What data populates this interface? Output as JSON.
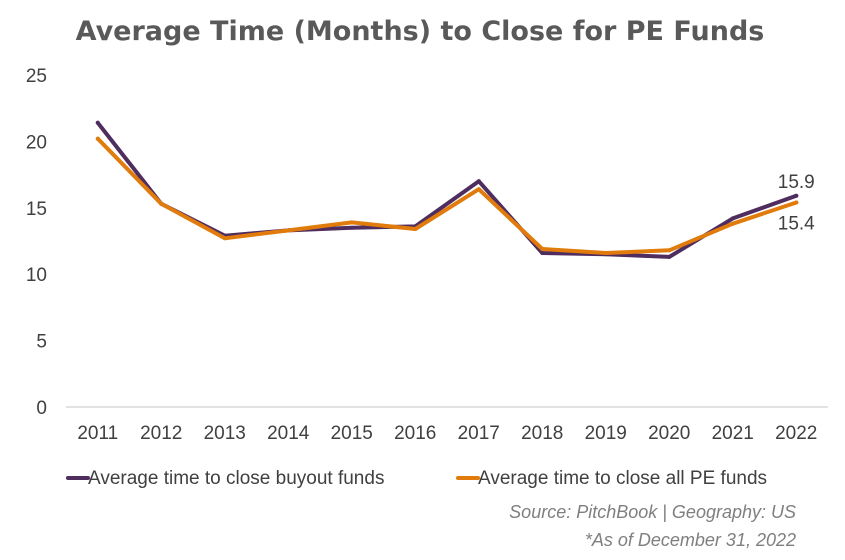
{
  "chart_data": {
    "type": "line",
    "title": "Average Time (Months) to Close for PE Funds",
    "xlabel": "",
    "ylabel": "",
    "categories": [
      "2011",
      "2012",
      "2013",
      "2014",
      "2015",
      "2016",
      "2017",
      "2018",
      "2019",
      "2020",
      "2021",
      "2022"
    ],
    "yticks": [
      0,
      5,
      10,
      15,
      20,
      25
    ],
    "ylim": [
      0,
      25
    ],
    "grid": false,
    "legend_position": "bottom",
    "series": [
      {
        "name": "Average time to close buyout funds",
        "color": "#4f2d5f",
        "values": [
          21.4,
          15.3,
          12.9,
          13.3,
          13.5,
          13.6,
          17.0,
          11.6,
          11.5,
          11.3,
          14.2,
          15.9
        ],
        "end_label": "15.9"
      },
      {
        "name": "Average time to close all PE funds",
        "color": "#e07b0c",
        "values": [
          20.2,
          15.3,
          12.7,
          13.3,
          13.9,
          13.4,
          16.4,
          11.9,
          11.6,
          11.8,
          13.8,
          15.4
        ],
        "end_label": "15.4"
      }
    ],
    "source": "Source: PitchBook | Geography: US",
    "note": "*As of December 31, 2022"
  }
}
